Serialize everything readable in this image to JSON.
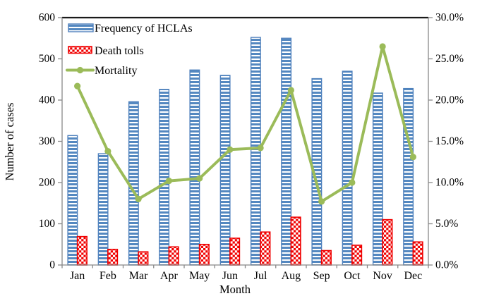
{
  "chart_data": {
    "type": "combo",
    "categories": [
      "Jan",
      "Feb",
      "Mar",
      "Apr",
      "May",
      "Jun",
      "Jul",
      "Aug",
      "Sep",
      "Oct",
      "Nov",
      "Dec"
    ],
    "series": [
      {
        "name": "Frequency of HCLAs",
        "type": "bar",
        "axis": "left",
        "pattern": "horizontal-stripes",
        "color": "#4f81bd",
        "values": [
          314,
          270,
          396,
          426,
          473,
          460,
          552,
          550,
          452,
          470,
          417,
          428
        ]
      },
      {
        "name": "Death tolls",
        "type": "bar",
        "axis": "left",
        "pattern": "checkerboard",
        "color": "#f00000",
        "values": [
          69,
          38,
          32,
          44,
          50,
          65,
          80,
          116,
          35,
          48,
          110,
          56
        ]
      },
      {
        "name": "Mortality",
        "type": "line",
        "axis": "right",
        "marker": "circle",
        "color": "#9bbb59",
        "unit": "%",
        "values": [
          21.7,
          13.8,
          8.0,
          10.2,
          10.5,
          14.0,
          14.2,
          21.2,
          7.7,
          10.0,
          26.5,
          13.1
        ]
      }
    ],
    "left_axis": {
      "label": "Number of cases",
      "min": 0,
      "max": 600,
      "tick_values": [
        0,
        100,
        200,
        300,
        400,
        500,
        600
      ],
      "tick_labels": [
        "0",
        "100",
        "200",
        "300",
        "400",
        "500",
        "600"
      ]
    },
    "right_axis": {
      "min": 0,
      "max": 30,
      "tick_values": [
        0,
        5,
        10,
        15,
        20,
        25,
        30
      ],
      "tick_labels": [
        "0.0%",
        "5.0%",
        "10.0%",
        "15.0%",
        "20.0%",
        "25.0%",
        "30.0%"
      ]
    },
    "x_axis": {
      "label": "Month"
    },
    "legend": {
      "position": "top-left-inside",
      "entries": [
        "Frequency of HCLAs",
        "Death tolls",
        "Mortality"
      ]
    },
    "grid": false,
    "colors": {
      "plot_border_top": "#1a1a1a",
      "axis_line": "#898989",
      "background": "#ffffff"
    }
  }
}
